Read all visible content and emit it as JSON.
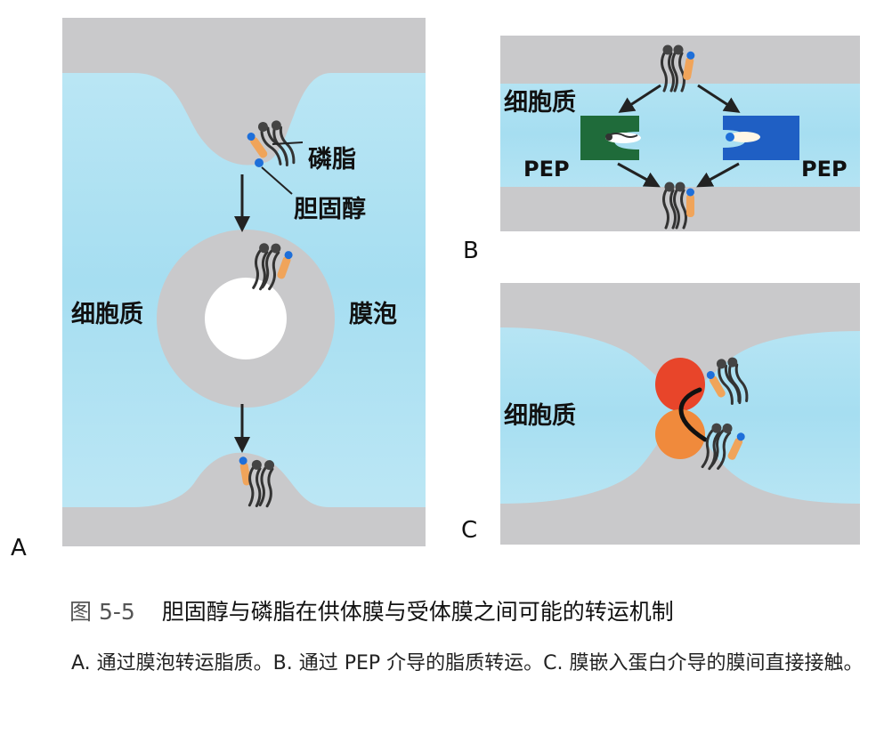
{
  "panels": {
    "a": {
      "letter": "A",
      "label_phospholipid": "磷脂",
      "label_cholesterol": "胆固醇",
      "label_cytoplasm": "细胞质",
      "label_vesicle": "膜泡"
    },
    "b": {
      "letter": "B",
      "label_cytoplasm": "细胞质",
      "label_pep_left": "PEP",
      "label_pep_right": "PEP"
    },
    "c": {
      "letter": "C",
      "label_cytoplasm": "细胞质"
    }
  },
  "caption": {
    "number": "图 5-5",
    "title": "胆固醇与磷脂在供体膜与受体膜之间可能的转运机制",
    "description": "A. 通过膜泡转运脂质。B. 通过 PEP 介导的脂质转运。C. 膜嵌入蛋白介导的膜间直接接触。"
  },
  "colors": {
    "membrane": "#c9c9cb",
    "cytoplasm": "#aee2f2",
    "pep_green": "#1f6b3a",
    "pep_blue": "#1f5fc4",
    "protein_red": "#e8452a",
    "protein_orange": "#f08a3c",
    "cholesterol_blue": "#1e6fd9",
    "lipid_orange": "#f0a45a"
  }
}
